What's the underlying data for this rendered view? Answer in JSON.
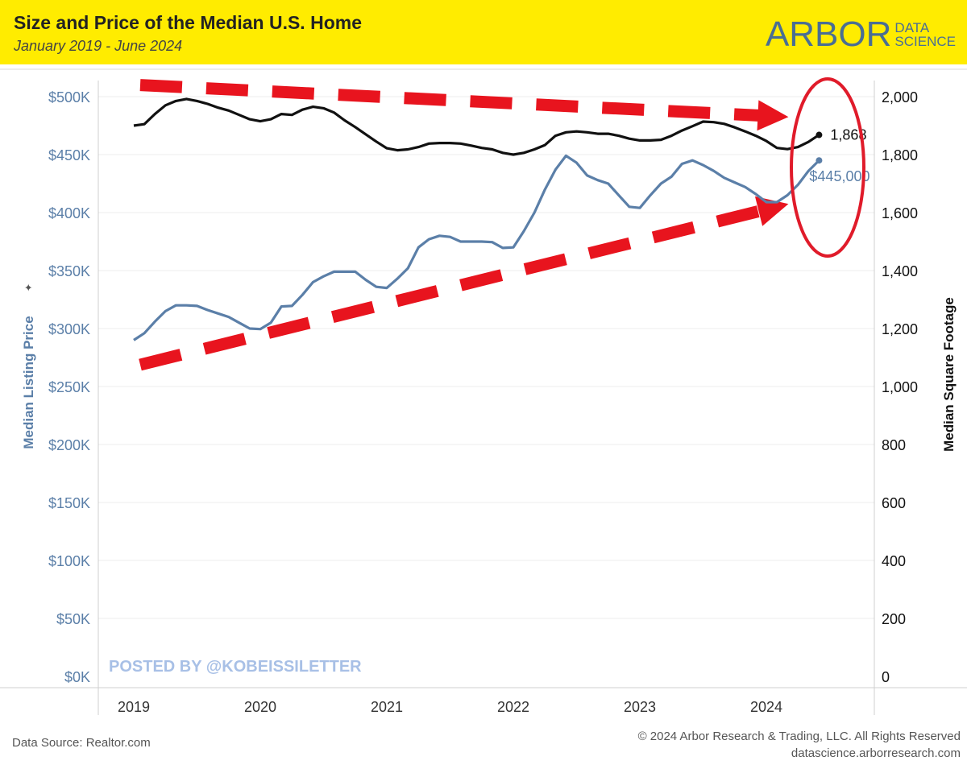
{
  "header": {
    "title": "Size and Price of the Median U.S. Home",
    "subtitle": "January 2019 - June 2024",
    "logo_main": "ARBOR",
    "logo_sub_1": "DATA",
    "logo_sub_2": "SCIENCE"
  },
  "watermark": "POSTED BY @KOBEISSILETTER",
  "footer": {
    "source": "Data Source: Realtor.com",
    "copyright": "© 2024 Arbor Research & Trading, LLC. All Rights Reserved",
    "website": "datascience.arborresearch.com"
  },
  "colors": {
    "banner": "#ffec00",
    "price_line": "#5b7fa8",
    "sqft_line": "#111111",
    "arrow": "#e8141e",
    "circle": "#e01b2a"
  },
  "chart_data": {
    "type": "line",
    "xlabel": "",
    "x_ticks": [
      "2019",
      "2020",
      "2021",
      "2022",
      "2023",
      "2024"
    ],
    "y_left": {
      "label": "Median Listing Price",
      "range": [
        0,
        500000
      ],
      "ticks": [
        "$0K",
        "$50K",
        "$100K",
        "$150K",
        "$200K",
        "$250K",
        "$300K",
        "$350K",
        "$400K",
        "$450K",
        "$500K"
      ]
    },
    "y_right": {
      "label": "Median Square Footage",
      "range": [
        0,
        2000
      ],
      "ticks": [
        "0",
        "200",
        "400",
        "600",
        "800",
        "1,000",
        "1,200",
        "1,400",
        "1,600",
        "1,800",
        "2,000"
      ]
    },
    "grid": "horizontal",
    "series": [
      {
        "name": "Median Listing Price",
        "axis": "left",
        "end_label": "$445,000",
        "x": [
          "2019-01",
          "2019-02",
          "2019-03",
          "2019-04",
          "2019-05",
          "2019-06",
          "2019-07",
          "2019-08",
          "2019-09",
          "2019-10",
          "2019-11",
          "2019-12",
          "2020-01",
          "2020-02",
          "2020-03",
          "2020-04",
          "2020-05",
          "2020-06",
          "2020-07",
          "2020-08",
          "2020-09",
          "2020-10",
          "2020-11",
          "2020-12",
          "2021-01",
          "2021-02",
          "2021-03",
          "2021-04",
          "2021-05",
          "2021-06",
          "2021-07",
          "2021-08",
          "2021-09",
          "2021-10",
          "2021-11",
          "2021-12",
          "2022-01",
          "2022-02",
          "2022-03",
          "2022-04",
          "2022-05",
          "2022-06",
          "2022-07",
          "2022-08",
          "2022-09",
          "2022-10",
          "2022-11",
          "2022-12",
          "2023-01",
          "2023-02",
          "2023-03",
          "2023-04",
          "2023-05",
          "2023-06",
          "2023-07",
          "2023-08",
          "2023-09",
          "2023-10",
          "2023-11",
          "2023-12",
          "2024-01",
          "2024-02",
          "2024-03",
          "2024-04",
          "2024-05",
          "2024-06"
        ],
        "values": [
          290000,
          296000,
          306000,
          315000,
          320000,
          320000,
          319500,
          316000,
          313000,
          310000,
          305000,
          300000,
          299500,
          305000,
          319000,
          319500,
          329000,
          340000,
          345000,
          349000,
          349000,
          349000,
          342000,
          336000,
          335000,
          343000,
          352000,
          370000,
          377000,
          380000,
          379000,
          375000,
          375000,
          375000,
          374500,
          369500,
          370000,
          384000,
          400000,
          420000,
          437000,
          449000,
          443000,
          432000,
          428000,
          425000,
          415000,
          405000,
          404000,
          415000,
          425000,
          431000,
          442000,
          445000,
          441000,
          436000,
          430000,
          426000,
          422000,
          416000,
          409000,
          409000,
          415000,
          424000,
          436000,
          445000
        ]
      },
      {
        "name": "Median Square Footage",
        "axis": "right",
        "end_label": "1,868",
        "x": [
          "2019-01",
          "2019-02",
          "2019-03",
          "2019-04",
          "2019-05",
          "2019-06",
          "2019-07",
          "2019-08",
          "2019-09",
          "2019-10",
          "2019-11",
          "2019-12",
          "2020-01",
          "2020-02",
          "2020-03",
          "2020-04",
          "2020-05",
          "2020-06",
          "2020-07",
          "2020-08",
          "2020-09",
          "2020-10",
          "2020-11",
          "2020-12",
          "2021-01",
          "2021-02",
          "2021-03",
          "2021-04",
          "2021-05",
          "2021-06",
          "2021-07",
          "2021-08",
          "2021-09",
          "2021-10",
          "2021-11",
          "2021-12",
          "2022-01",
          "2022-02",
          "2022-03",
          "2022-04",
          "2022-05",
          "2022-06",
          "2022-07",
          "2022-08",
          "2022-09",
          "2022-10",
          "2022-11",
          "2022-12",
          "2023-01",
          "2023-02",
          "2023-03",
          "2023-04",
          "2023-05",
          "2023-06",
          "2023-07",
          "2023-08",
          "2023-09",
          "2023-10",
          "2023-11",
          "2023-12",
          "2024-01",
          "2024-02",
          "2024-03",
          "2024-04",
          "2024-05",
          "2024-06"
        ],
        "values": [
          1900,
          1905,
          1940,
          1970,
          1985,
          1992,
          1985,
          1975,
          1962,
          1952,
          1937,
          1922,
          1915,
          1922,
          1940,
          1937,
          1955,
          1965,
          1960,
          1945,
          1918,
          1895,
          1870,
          1845,
          1822,
          1815,
          1818,
          1826,
          1838,
          1840,
          1840,
          1838,
          1831,
          1823,
          1818,
          1806,
          1800,
          1806,
          1818,
          1833,
          1865,
          1877,
          1880,
          1877,
          1872,
          1872,
          1865,
          1855,
          1849,
          1849,
          1851,
          1865,
          1883,
          1898,
          1914,
          1912,
          1906,
          1894,
          1880,
          1865,
          1847,
          1823,
          1819,
          1826,
          1844,
          1868
        ]
      }
    ],
    "annotations": [
      {
        "type": "arrow",
        "style": "dashed",
        "direction": "down-right",
        "from": [
          "2019-01",
          2040
        ],
        "to": [
          "2024-06",
          1930
        ]
      },
      {
        "type": "arrow",
        "style": "dashed",
        "direction": "up-right",
        "from": [
          "2019-01",
          1075
        ],
        "to": [
          "2024-06",
          1630
        ]
      },
      {
        "type": "ellipse",
        "around": "end of both series"
      }
    ]
  }
}
